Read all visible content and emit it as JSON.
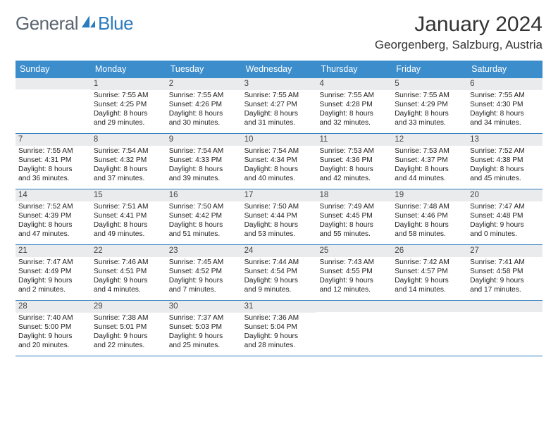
{
  "brand": {
    "word1": "General",
    "word2": "Blue",
    "word1_color": "#5a6570",
    "word2_color": "#2a7bbf",
    "sail_color": "#2a7bbf"
  },
  "title": "January 2024",
  "location": "Georgenberg, Salzburg, Austria",
  "colors": {
    "header_bg": "#3c8dcc",
    "header_text": "#ffffff",
    "daynum_bg": "#e9ebed",
    "row_divider": "#2a7bbf",
    "body_text": "#222222",
    "background": "#ffffff"
  },
  "typography": {
    "title_fontsize": 30,
    "location_fontsize": 17,
    "dayheader_fontsize": 12.5,
    "daynum_fontsize": 11.5,
    "cell_fontsize": 10.2
  },
  "layout": {
    "columns": 7,
    "rows": 5,
    "leading_blanks": 1
  },
  "day_headers": [
    "Sunday",
    "Monday",
    "Tuesday",
    "Wednesday",
    "Thursday",
    "Friday",
    "Saturday"
  ],
  "weeks": [
    [
      {
        "blank": true
      },
      {
        "day": "1",
        "sunrise": "Sunrise: 7:55 AM",
        "sunset": "Sunset: 4:25 PM",
        "daylight1": "Daylight: 8 hours",
        "daylight2": "and 29 minutes."
      },
      {
        "day": "2",
        "sunrise": "Sunrise: 7:55 AM",
        "sunset": "Sunset: 4:26 PM",
        "daylight1": "Daylight: 8 hours",
        "daylight2": "and 30 minutes."
      },
      {
        "day": "3",
        "sunrise": "Sunrise: 7:55 AM",
        "sunset": "Sunset: 4:27 PM",
        "daylight1": "Daylight: 8 hours",
        "daylight2": "and 31 minutes."
      },
      {
        "day": "4",
        "sunrise": "Sunrise: 7:55 AM",
        "sunset": "Sunset: 4:28 PM",
        "daylight1": "Daylight: 8 hours",
        "daylight2": "and 32 minutes."
      },
      {
        "day": "5",
        "sunrise": "Sunrise: 7:55 AM",
        "sunset": "Sunset: 4:29 PM",
        "daylight1": "Daylight: 8 hours",
        "daylight2": "and 33 minutes."
      },
      {
        "day": "6",
        "sunrise": "Sunrise: 7:55 AM",
        "sunset": "Sunset: 4:30 PM",
        "daylight1": "Daylight: 8 hours",
        "daylight2": "and 34 minutes."
      }
    ],
    [
      {
        "day": "7",
        "sunrise": "Sunrise: 7:55 AM",
        "sunset": "Sunset: 4:31 PM",
        "daylight1": "Daylight: 8 hours",
        "daylight2": "and 36 minutes."
      },
      {
        "day": "8",
        "sunrise": "Sunrise: 7:54 AM",
        "sunset": "Sunset: 4:32 PM",
        "daylight1": "Daylight: 8 hours",
        "daylight2": "and 37 minutes."
      },
      {
        "day": "9",
        "sunrise": "Sunrise: 7:54 AM",
        "sunset": "Sunset: 4:33 PM",
        "daylight1": "Daylight: 8 hours",
        "daylight2": "and 39 minutes."
      },
      {
        "day": "10",
        "sunrise": "Sunrise: 7:54 AM",
        "sunset": "Sunset: 4:34 PM",
        "daylight1": "Daylight: 8 hours",
        "daylight2": "and 40 minutes."
      },
      {
        "day": "11",
        "sunrise": "Sunrise: 7:53 AM",
        "sunset": "Sunset: 4:36 PM",
        "daylight1": "Daylight: 8 hours",
        "daylight2": "and 42 minutes."
      },
      {
        "day": "12",
        "sunrise": "Sunrise: 7:53 AM",
        "sunset": "Sunset: 4:37 PM",
        "daylight1": "Daylight: 8 hours",
        "daylight2": "and 44 minutes."
      },
      {
        "day": "13",
        "sunrise": "Sunrise: 7:52 AM",
        "sunset": "Sunset: 4:38 PM",
        "daylight1": "Daylight: 8 hours",
        "daylight2": "and 45 minutes."
      }
    ],
    [
      {
        "day": "14",
        "sunrise": "Sunrise: 7:52 AM",
        "sunset": "Sunset: 4:39 PM",
        "daylight1": "Daylight: 8 hours",
        "daylight2": "and 47 minutes."
      },
      {
        "day": "15",
        "sunrise": "Sunrise: 7:51 AM",
        "sunset": "Sunset: 4:41 PM",
        "daylight1": "Daylight: 8 hours",
        "daylight2": "and 49 minutes."
      },
      {
        "day": "16",
        "sunrise": "Sunrise: 7:50 AM",
        "sunset": "Sunset: 4:42 PM",
        "daylight1": "Daylight: 8 hours",
        "daylight2": "and 51 minutes."
      },
      {
        "day": "17",
        "sunrise": "Sunrise: 7:50 AM",
        "sunset": "Sunset: 4:44 PM",
        "daylight1": "Daylight: 8 hours",
        "daylight2": "and 53 minutes."
      },
      {
        "day": "18",
        "sunrise": "Sunrise: 7:49 AM",
        "sunset": "Sunset: 4:45 PM",
        "daylight1": "Daylight: 8 hours",
        "daylight2": "and 55 minutes."
      },
      {
        "day": "19",
        "sunrise": "Sunrise: 7:48 AM",
        "sunset": "Sunset: 4:46 PM",
        "daylight1": "Daylight: 8 hours",
        "daylight2": "and 58 minutes."
      },
      {
        "day": "20",
        "sunrise": "Sunrise: 7:47 AM",
        "sunset": "Sunset: 4:48 PM",
        "daylight1": "Daylight: 9 hours",
        "daylight2": "and 0 minutes."
      }
    ],
    [
      {
        "day": "21",
        "sunrise": "Sunrise: 7:47 AM",
        "sunset": "Sunset: 4:49 PM",
        "daylight1": "Daylight: 9 hours",
        "daylight2": "and 2 minutes."
      },
      {
        "day": "22",
        "sunrise": "Sunrise: 7:46 AM",
        "sunset": "Sunset: 4:51 PM",
        "daylight1": "Daylight: 9 hours",
        "daylight2": "and 4 minutes."
      },
      {
        "day": "23",
        "sunrise": "Sunrise: 7:45 AM",
        "sunset": "Sunset: 4:52 PM",
        "daylight1": "Daylight: 9 hours",
        "daylight2": "and 7 minutes."
      },
      {
        "day": "24",
        "sunrise": "Sunrise: 7:44 AM",
        "sunset": "Sunset: 4:54 PM",
        "daylight1": "Daylight: 9 hours",
        "daylight2": "and 9 minutes."
      },
      {
        "day": "25",
        "sunrise": "Sunrise: 7:43 AM",
        "sunset": "Sunset: 4:55 PM",
        "daylight1": "Daylight: 9 hours",
        "daylight2": "and 12 minutes."
      },
      {
        "day": "26",
        "sunrise": "Sunrise: 7:42 AM",
        "sunset": "Sunset: 4:57 PM",
        "daylight1": "Daylight: 9 hours",
        "daylight2": "and 14 minutes."
      },
      {
        "day": "27",
        "sunrise": "Sunrise: 7:41 AM",
        "sunset": "Sunset: 4:58 PM",
        "daylight1": "Daylight: 9 hours",
        "daylight2": "and 17 minutes."
      }
    ],
    [
      {
        "day": "28",
        "sunrise": "Sunrise: 7:40 AM",
        "sunset": "Sunset: 5:00 PM",
        "daylight1": "Daylight: 9 hours",
        "daylight2": "and 20 minutes."
      },
      {
        "day": "29",
        "sunrise": "Sunrise: 7:38 AM",
        "sunset": "Sunset: 5:01 PM",
        "daylight1": "Daylight: 9 hours",
        "daylight2": "and 22 minutes."
      },
      {
        "day": "30",
        "sunrise": "Sunrise: 7:37 AM",
        "sunset": "Sunset: 5:03 PM",
        "daylight1": "Daylight: 9 hours",
        "daylight2": "and 25 minutes."
      },
      {
        "day": "31",
        "sunrise": "Sunrise: 7:36 AM",
        "sunset": "Sunset: 5:04 PM",
        "daylight1": "Daylight: 9 hours",
        "daylight2": "and 28 minutes."
      },
      {
        "blank": true
      },
      {
        "blank": true
      },
      {
        "blank": true
      }
    ]
  ]
}
